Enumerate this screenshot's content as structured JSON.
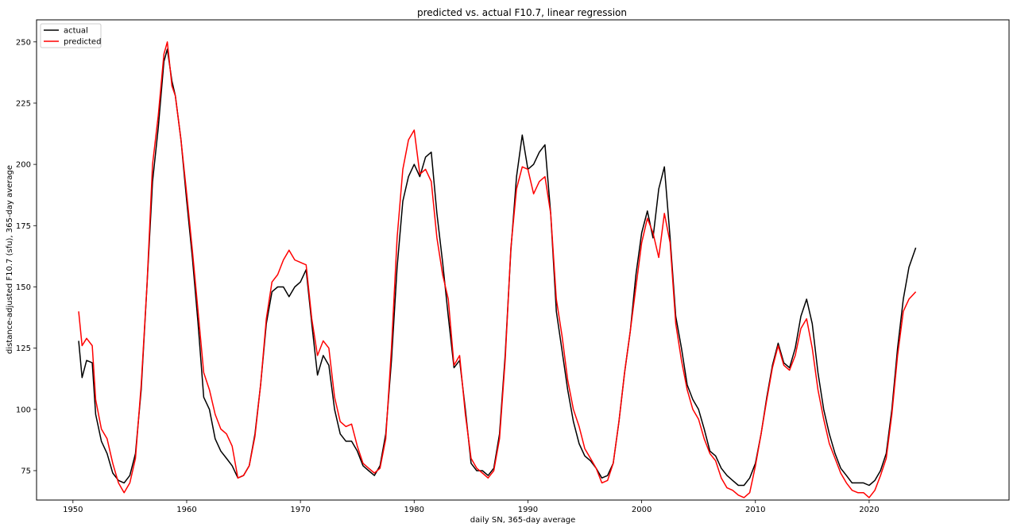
{
  "chart_data": {
    "type": "line",
    "title": "predicted vs. actual F10.7, linear regression",
    "xlabel": "daily SN, 365-day average",
    "ylabel": "distance-adjusted F10.7 (sfu), 365-day average",
    "xlim": [
      1946.8,
      2032.3
    ],
    "ylim": [
      63,
      259
    ],
    "xticks": [
      1950,
      1960,
      1970,
      1980,
      1990,
      2000,
      2010,
      2020
    ],
    "yticks": [
      75,
      100,
      125,
      150,
      175,
      200,
      225,
      250
    ],
    "legend_position": "upper-left",
    "grid": false,
    "series": [
      {
        "name": "actual",
        "color": "#000000",
        "points": [
          [
            1950.5,
            128
          ],
          [
            1950.8,
            113
          ],
          [
            1951.2,
            120
          ],
          [
            1951.7,
            119
          ],
          [
            1952.0,
            98
          ],
          [
            1952.5,
            87
          ],
          [
            1953.0,
            82
          ],
          [
            1953.5,
            74
          ],
          [
            1954.0,
            71
          ],
          [
            1954.5,
            70
          ],
          [
            1955.0,
            73
          ],
          [
            1955.5,
            82
          ],
          [
            1956.0,
            108
          ],
          [
            1956.5,
            150
          ],
          [
            1957.0,
            193
          ],
          [
            1957.5,
            215
          ],
          [
            1958.0,
            242
          ],
          [
            1958.3,
            247
          ],
          [
            1958.7,
            234
          ],
          [
            1959.0,
            228
          ],
          [
            1959.5,
            210
          ],
          [
            1960.0,
            185
          ],
          [
            1960.5,
            162
          ],
          [
            1961.0,
            135
          ],
          [
            1961.5,
            105
          ],
          [
            1962.0,
            100
          ],
          [
            1962.5,
            88
          ],
          [
            1963.0,
            83
          ],
          [
            1963.5,
            80
          ],
          [
            1964.0,
            77
          ],
          [
            1964.5,
            72
          ],
          [
            1965.0,
            73
          ],
          [
            1965.5,
            77
          ],
          [
            1966.0,
            90
          ],
          [
            1966.5,
            110
          ],
          [
            1967.0,
            135
          ],
          [
            1967.5,
            148
          ],
          [
            1968.0,
            150
          ],
          [
            1968.5,
            150
          ],
          [
            1969.0,
            146
          ],
          [
            1969.5,
            150
          ],
          [
            1970.0,
            152
          ],
          [
            1970.5,
            157
          ],
          [
            1971.0,
            135
          ],
          [
            1971.5,
            114
          ],
          [
            1972.0,
            122
          ],
          [
            1972.5,
            118
          ],
          [
            1973.0,
            100
          ],
          [
            1973.5,
            90
          ],
          [
            1974.0,
            87
          ],
          [
            1974.5,
            87
          ],
          [
            1975.0,
            83
          ],
          [
            1975.5,
            77
          ],
          [
            1976.0,
            75
          ],
          [
            1976.5,
            73
          ],
          [
            1977.0,
            77
          ],
          [
            1977.5,
            90
          ],
          [
            1978.0,
            120
          ],
          [
            1978.5,
            158
          ],
          [
            1979.0,
            185
          ],
          [
            1979.5,
            195
          ],
          [
            1980.0,
            200
          ],
          [
            1980.5,
            195
          ],
          [
            1981.0,
            203
          ],
          [
            1981.5,
            205
          ],
          [
            1982.0,
            180
          ],
          [
            1982.5,
            160
          ],
          [
            1983.0,
            138
          ],
          [
            1983.5,
            117
          ],
          [
            1984.0,
            120
          ],
          [
            1984.5,
            100
          ],
          [
            1985.0,
            78
          ],
          [
            1985.5,
            75
          ],
          [
            1986.0,
            75
          ],
          [
            1986.5,
            73
          ],
          [
            1987.0,
            76
          ],
          [
            1987.5,
            90
          ],
          [
            1988.0,
            122
          ],
          [
            1988.5,
            165
          ],
          [
            1989.0,
            195
          ],
          [
            1989.5,
            212
          ],
          [
            1990.0,
            198
          ],
          [
            1990.5,
            200
          ],
          [
            1991.0,
            205
          ],
          [
            1991.5,
            208
          ],
          [
            1992.0,
            180
          ],
          [
            1992.5,
            140
          ],
          [
            1993.0,
            124
          ],
          [
            1993.5,
            108
          ],
          [
            1994.0,
            95
          ],
          [
            1994.5,
            86
          ],
          [
            1995.0,
            81
          ],
          [
            1995.5,
            79
          ],
          [
            1996.0,
            76
          ],
          [
            1996.5,
            72
          ],
          [
            1997.0,
            73
          ],
          [
            1997.5,
            78
          ],
          [
            1998.0,
            95
          ],
          [
            1998.5,
            115
          ],
          [
            1999.0,
            132
          ],
          [
            1999.5,
            155
          ],
          [
            2000.0,
            172
          ],
          [
            2000.5,
            181
          ],
          [
            2001.0,
            170
          ],
          [
            2001.5,
            190
          ],
          [
            2002.0,
            199
          ],
          [
            2002.5,
            170
          ],
          [
            2003.0,
            138
          ],
          [
            2003.5,
            125
          ],
          [
            2004.0,
            110
          ],
          [
            2004.5,
            104
          ],
          [
            2005.0,
            100
          ],
          [
            2005.5,
            92
          ],
          [
            2006.0,
            83
          ],
          [
            2006.5,
            81
          ],
          [
            2007.0,
            76
          ],
          [
            2007.5,
            73
          ],
          [
            2008.0,
            71
          ],
          [
            2008.5,
            69
          ],
          [
            2009.0,
            69
          ],
          [
            2009.5,
            72
          ],
          [
            2010.0,
            78
          ],
          [
            2010.5,
            90
          ],
          [
            2011.0,
            105
          ],
          [
            2011.5,
            118
          ],
          [
            2012.0,
            127
          ],
          [
            2012.5,
            119
          ],
          [
            2013.0,
            117
          ],
          [
            2013.5,
            125
          ],
          [
            2014.0,
            138
          ],
          [
            2014.5,
            145
          ],
          [
            2015.0,
            135
          ],
          [
            2015.5,
            115
          ],
          [
            2016.0,
            100
          ],
          [
            2016.5,
            90
          ],
          [
            2017.0,
            82
          ],
          [
            2017.5,
            76
          ],
          [
            2018.0,
            73
          ],
          [
            2018.5,
            70
          ],
          [
            2019.0,
            70
          ],
          [
            2019.5,
            70
          ],
          [
            2020.0,
            69
          ],
          [
            2020.5,
            71
          ],
          [
            2021.0,
            75
          ],
          [
            2021.5,
            82
          ],
          [
            2022.0,
            100
          ],
          [
            2022.5,
            125
          ],
          [
            2023.0,
            145
          ],
          [
            2023.5,
            158
          ],
          [
            2024.1,
            166
          ]
        ]
      },
      {
        "name": "predicted",
        "color": "#ff0000",
        "points": [
          [
            1950.5,
            140
          ],
          [
            1950.8,
            126
          ],
          [
            1951.2,
            129
          ],
          [
            1951.7,
            126
          ],
          [
            1952.0,
            104
          ],
          [
            1952.5,
            92
          ],
          [
            1953.0,
            88
          ],
          [
            1953.5,
            78
          ],
          [
            1954.0,
            70
          ],
          [
            1954.5,
            66
          ],
          [
            1955.0,
            70
          ],
          [
            1955.5,
            80
          ],
          [
            1956.0,
            110
          ],
          [
            1956.5,
            150
          ],
          [
            1957.0,
            200
          ],
          [
            1957.5,
            220
          ],
          [
            1958.0,
            245
          ],
          [
            1958.3,
            250
          ],
          [
            1958.7,
            232
          ],
          [
            1959.0,
            228
          ],
          [
            1959.5,
            210
          ],
          [
            1960.0,
            188
          ],
          [
            1960.5,
            165
          ],
          [
            1961.0,
            140
          ],
          [
            1961.5,
            115
          ],
          [
            1962.0,
            108
          ],
          [
            1962.5,
            98
          ],
          [
            1963.0,
            92
          ],
          [
            1963.5,
            90
          ],
          [
            1964.0,
            85
          ],
          [
            1964.5,
            72
          ],
          [
            1965.0,
            73
          ],
          [
            1965.5,
            77
          ],
          [
            1966.0,
            89
          ],
          [
            1966.5,
            110
          ],
          [
            1967.0,
            137
          ],
          [
            1967.5,
            152
          ],
          [
            1968.0,
            155
          ],
          [
            1968.5,
            161
          ],
          [
            1969.0,
            165
          ],
          [
            1969.5,
            161
          ],
          [
            1970.0,
            160
          ],
          [
            1970.5,
            159
          ],
          [
            1971.0,
            137
          ],
          [
            1971.5,
            122
          ],
          [
            1972.0,
            128
          ],
          [
            1972.5,
            125
          ],
          [
            1973.0,
            105
          ],
          [
            1973.5,
            95
          ],
          [
            1974.0,
            93
          ],
          [
            1974.5,
            94
          ],
          [
            1975.0,
            85
          ],
          [
            1975.5,
            78
          ],
          [
            1976.0,
            76
          ],
          [
            1976.5,
            74
          ],
          [
            1977.0,
            76
          ],
          [
            1977.5,
            88
          ],
          [
            1978.0,
            125
          ],
          [
            1978.5,
            170
          ],
          [
            1979.0,
            198
          ],
          [
            1979.5,
            210
          ],
          [
            1980.0,
            214
          ],
          [
            1980.5,
            196
          ],
          [
            1981.0,
            198
          ],
          [
            1981.5,
            193
          ],
          [
            1982.0,
            170
          ],
          [
            1982.5,
            155
          ],
          [
            1983.0,
            145
          ],
          [
            1983.5,
            118
          ],
          [
            1984.0,
            122
          ],
          [
            1984.5,
            98
          ],
          [
            1985.0,
            80
          ],
          [
            1985.5,
            76
          ],
          [
            1986.0,
            74
          ],
          [
            1986.5,
            72
          ],
          [
            1987.0,
            75
          ],
          [
            1987.5,
            88
          ],
          [
            1988.0,
            120
          ],
          [
            1988.5,
            166
          ],
          [
            1989.0,
            190
          ],
          [
            1989.5,
            199
          ],
          [
            1990.0,
            198
          ],
          [
            1990.5,
            188
          ],
          [
            1991.0,
            193
          ],
          [
            1991.5,
            195
          ],
          [
            1992.0,
            180
          ],
          [
            1992.5,
            145
          ],
          [
            1993.0,
            130
          ],
          [
            1993.5,
            112
          ],
          [
            1994.0,
            100
          ],
          [
            1994.5,
            93
          ],
          [
            1995.0,
            84
          ],
          [
            1995.5,
            80
          ],
          [
            1996.0,
            76
          ],
          [
            1996.5,
            70
          ],
          [
            1997.0,
            71
          ],
          [
            1997.5,
            78
          ],
          [
            1998.0,
            95
          ],
          [
            1998.5,
            115
          ],
          [
            1999.0,
            132
          ],
          [
            1999.5,
            150
          ],
          [
            2000.0,
            168
          ],
          [
            2000.5,
            178
          ],
          [
            2001.0,
            172
          ],
          [
            2001.5,
            162
          ],
          [
            2002.0,
            180
          ],
          [
            2002.5,
            168
          ],
          [
            2003.0,
            135
          ],
          [
            2003.5,
            120
          ],
          [
            2004.0,
            108
          ],
          [
            2004.5,
            100
          ],
          [
            2005.0,
            96
          ],
          [
            2005.5,
            88
          ],
          [
            2006.0,
            82
          ],
          [
            2006.5,
            79
          ],
          [
            2007.0,
            72
          ],
          [
            2007.5,
            68
          ],
          [
            2008.0,
            67
          ],
          [
            2008.5,
            65
          ],
          [
            2009.0,
            64
          ],
          [
            2009.5,
            66
          ],
          [
            2010.0,
            77
          ],
          [
            2010.5,
            90
          ],
          [
            2011.0,
            104
          ],
          [
            2011.5,
            117
          ],
          [
            2012.0,
            126
          ],
          [
            2012.5,
            118
          ],
          [
            2013.0,
            116
          ],
          [
            2013.5,
            122
          ],
          [
            2014.0,
            133
          ],
          [
            2014.5,
            137
          ],
          [
            2015.0,
            125
          ],
          [
            2015.5,
            108
          ],
          [
            2016.0,
            96
          ],
          [
            2016.5,
            86
          ],
          [
            2017.0,
            80
          ],
          [
            2017.5,
            74
          ],
          [
            2018.0,
            70
          ],
          [
            2018.5,
            67
          ],
          [
            2019.0,
            66
          ],
          [
            2019.5,
            66
          ],
          [
            2020.0,
            64
          ],
          [
            2020.5,
            67
          ],
          [
            2021.0,
            73
          ],
          [
            2021.5,
            80
          ],
          [
            2022.0,
            98
          ],
          [
            2022.5,
            122
          ],
          [
            2023.0,
            140
          ],
          [
            2023.5,
            145
          ],
          [
            2024.1,
            148
          ]
        ]
      }
    ]
  }
}
